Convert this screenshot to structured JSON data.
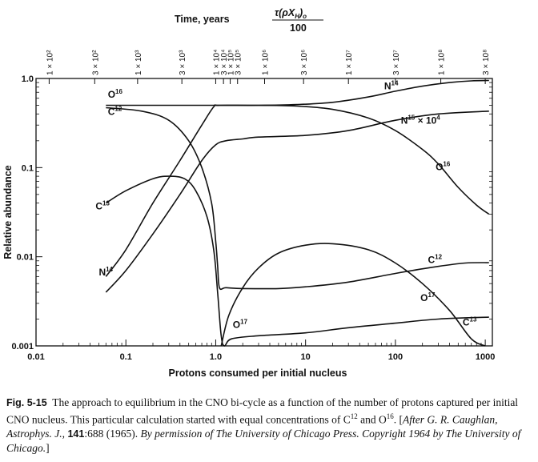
{
  "chart_data": {
    "type": "line",
    "title": "",
    "xlabel": "Protons consumed per initial nucleus",
    "ylabel": "Relative abundance",
    "top_axis_label": "Time, years",
    "top_axis_formula": {
      "numerator": "τ(ρX",
      "sub_h": "H",
      "close": ")",
      "sub_o": "o",
      "denominator": "100"
    },
    "x_scale": "log",
    "y_scale": "log",
    "xlim": [
      0.01,
      1200
    ],
    "ylim": [
      0.001,
      1.0
    ],
    "x_ticks": [
      {
        "value": 0.01,
        "label": "0.01"
      },
      {
        "value": 0.1,
        "label": "0.1"
      },
      {
        "value": 1.0,
        "label": "1.0"
      },
      {
        "value": 10,
        "label": "10"
      },
      {
        "value": 100,
        "label": "100"
      },
      {
        "value": 1000,
        "label": "1000"
      }
    ],
    "y_ticks": [
      {
        "value": 1.0,
        "label": "1.0"
      },
      {
        "value": 0.1,
        "label": "0.1"
      },
      {
        "value": 0.01,
        "label": "0.01"
      },
      {
        "value": 0.001,
        "label": "0.001"
      }
    ],
    "top_ticks": [
      {
        "x": 0.014,
        "label": "1 × 10²"
      },
      {
        "x": 0.045,
        "label": "3 × 10²"
      },
      {
        "x": 0.135,
        "label": "1 × 10³"
      },
      {
        "x": 0.42,
        "label": "3 × 10³"
      },
      {
        "x": 1.0,
        "label": "1 × 10⁴"
      },
      {
        "x": 1.22,
        "label": "3 × 10⁴"
      },
      {
        "x": 1.45,
        "label": "1 × 10⁵"
      },
      {
        "x": 1.75,
        "label": "3 × 10⁵"
      },
      {
        "x": 3.5,
        "label": "1 × 10⁶"
      },
      {
        "x": 9.5,
        "label": "3 × 10⁶"
      },
      {
        "x": 30,
        "label": "1 × 10⁷"
      },
      {
        "x": 100,
        "label": "3 × 10⁷"
      },
      {
        "x": 320,
        "label": "1 × 10⁸"
      },
      {
        "x": 1000,
        "label": "3 × 10⁸"
      }
    ],
    "series": [
      {
        "name": "O16",
        "points": [
          [
            0.06,
            0.5
          ],
          [
            0.3,
            0.5
          ],
          [
            1.0,
            0.5
          ],
          [
            3,
            0.5
          ],
          [
            8,
            0.49
          ],
          [
            20,
            0.45
          ],
          [
            50,
            0.36
          ],
          [
            100,
            0.26
          ],
          [
            200,
            0.16
          ],
          [
            300,
            0.11
          ],
          [
            500,
            0.06
          ],
          [
            800,
            0.038
          ],
          [
            1100,
            0.03
          ]
        ]
      },
      {
        "name": "C12",
        "points": [
          [
            0.06,
            0.47
          ],
          [
            0.15,
            0.43
          ],
          [
            0.3,
            0.34
          ],
          [
            0.5,
            0.2
          ],
          [
            0.7,
            0.1
          ],
          [
            0.9,
            0.04
          ],
          [
            1.0,
            0.015
          ],
          [
            1.05,
            0.008
          ],
          [
            1.1,
            0.0045
          ],
          [
            1.3,
            0.0045
          ],
          [
            2,
            0.0044
          ],
          [
            5,
            0.0044
          ],
          [
            10,
            0.0046
          ],
          [
            30,
            0.0052
          ],
          [
            100,
            0.0065
          ],
          [
            300,
            0.0078
          ],
          [
            600,
            0.0085
          ],
          [
            1100,
            0.0086
          ]
        ]
      },
      {
        "name": "N14",
        "points": [
          [
            0.06,
            0.006
          ],
          [
            0.1,
            0.012
          ],
          [
            0.2,
            0.04
          ],
          [
            0.4,
            0.12
          ],
          [
            0.7,
            0.3
          ],
          [
            0.95,
            0.48
          ],
          [
            1.1,
            0.5
          ],
          [
            3,
            0.5
          ],
          [
            8,
            0.51
          ],
          [
            20,
            0.54
          ],
          [
            50,
            0.62
          ],
          [
            100,
            0.72
          ],
          [
            200,
            0.82
          ],
          [
            400,
            0.9
          ],
          [
            700,
            0.94
          ],
          [
            1100,
            0.95
          ]
        ]
      },
      {
        "name": "C13",
        "points": [
          [
            0.06,
            0.04
          ],
          [
            0.1,
            0.055
          ],
          [
            0.2,
            0.075
          ],
          [
            0.3,
            0.08
          ],
          [
            0.45,
            0.075
          ],
          [
            0.6,
            0.055
          ],
          [
            0.8,
            0.028
          ],
          [
            0.95,
            0.012
          ],
          [
            1.05,
            0.004
          ],
          [
            1.15,
            0.0013
          ],
          [
            1.25,
            0.001
          ],
          [
            1.5,
            0.0012
          ],
          [
            3,
            0.0013
          ],
          [
            10,
            0.0014
          ],
          [
            30,
            0.0016
          ],
          [
            100,
            0.0018
          ],
          [
            300,
            0.002
          ],
          [
            1100,
            0.0021
          ]
        ]
      },
      {
        "name": "N15 × 10⁴",
        "points": [
          [
            0.06,
            0.004
          ],
          [
            0.1,
            0.007
          ],
          [
            0.2,
            0.018
          ],
          [
            0.4,
            0.05
          ],
          [
            0.7,
            0.12
          ],
          [
            1.0,
            0.18
          ],
          [
            1.3,
            0.2
          ],
          [
            2,
            0.21
          ],
          [
            3,
            0.22
          ],
          [
            10,
            0.23
          ],
          [
            30,
            0.26
          ],
          [
            100,
            0.34
          ],
          [
            300,
            0.4
          ],
          [
            1100,
            0.43
          ]
        ]
      },
      {
        "name": "O17",
        "points": [
          [
            1.15,
            0.001
          ],
          [
            1.4,
            0.0022
          ],
          [
            2,
            0.0045
          ],
          [
            3,
            0.0075
          ],
          [
            5,
            0.011
          ],
          [
            10,
            0.0135
          ],
          [
            20,
            0.014
          ],
          [
            50,
            0.012
          ],
          [
            100,
            0.0085
          ],
          [
            200,
            0.005
          ],
          [
            400,
            0.0025
          ],
          [
            700,
            0.0012
          ],
          [
            1000,
            0.001
          ]
        ]
      }
    ],
    "curve_labels": [
      {
        "base": "O",
        "sup": "16",
        "x": 0.063,
        "y": 0.61
      },
      {
        "base": "C",
        "sup": "12",
        "x": 0.063,
        "y": 0.39
      },
      {
        "base": "N",
        "sup": "14",
        "x": 75,
        "y": 0.76
      },
      {
        "base": "N",
        "sup": "15",
        "tail": " × 10",
        "tail_sup": "4",
        "x": 115,
        "y": 0.31
      },
      {
        "base": "O",
        "sup": "16",
        "x": 280,
        "y": 0.094
      },
      {
        "base": "C",
        "sup": "13",
        "x": 0.046,
        "y": 0.034
      },
      {
        "base": "N",
        "sup": "14",
        "x": 0.05,
        "y": 0.0062
      },
      {
        "base": "C",
        "sup": "12",
        "x": 230,
        "y": 0.0085
      },
      {
        "base": "O",
        "sup": "17",
        "x": 190,
        "y": 0.0032
      },
      {
        "base": "O",
        "sup": "17",
        "x": 1.55,
        "y": 0.0016
      },
      {
        "base": "C",
        "sup": "13",
        "x": 560,
        "y": 0.0017
      }
    ]
  },
  "caption": {
    "fig_label": "Fig. 5-15",
    "text_1": "The approach to equilibrium in the CNO bi-cycle as a function of the number of protons captured per initial CNO nucleus. This particular calculation started with equal concentrations of C",
    "sup_1": "12",
    "text_2": " and O",
    "sup_2": "16",
    "text_3": ".  [",
    "italic_1": "After G. R. Caughlan, Astrophys. J.,",
    "bold_1": " 141",
    "text_4": ":688 (1965).  ",
    "italic_2": "By permission of The University of Chicago Press.  Copyright 1964 by The University of Chicago."
  }
}
